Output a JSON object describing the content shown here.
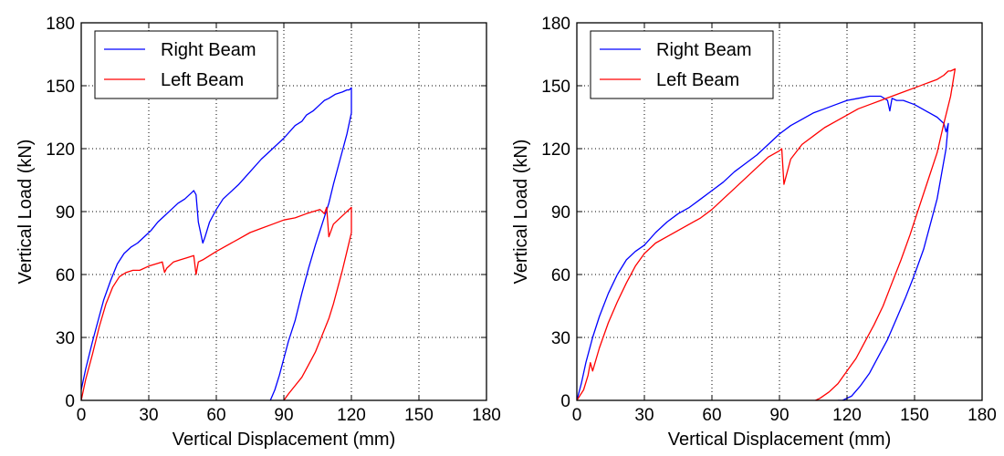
{
  "colors": {
    "right_beam": "#0000ff",
    "left_beam": "#ff0000",
    "grid": "#000000"
  },
  "chart_data": [
    {
      "type": "line",
      "xlabel": "Vertical Displacement (mm)",
      "ylabel": "Vertical Load (kN)",
      "xlim": [
        0,
        180
      ],
      "ylim": [
        0,
        180
      ],
      "xticks": [
        "0",
        "30",
        "60",
        "90",
        "120",
        "150",
        "180"
      ],
      "yticks": [
        "0",
        "30",
        "60",
        "90",
        "120",
        "150",
        "180"
      ],
      "grid": true,
      "legend_position": "top-left",
      "series": [
        {
          "name": "Right Beam",
          "color": "#0000ff",
          "x": [
            0,
            2,
            5,
            8,
            10,
            13,
            16,
            19,
            22,
            25,
            28,
            31,
            34,
            37,
            40,
            43,
            46,
            49,
            50,
            51,
            52,
            54,
            55,
            57,
            60,
            63,
            66,
            70,
            75,
            80,
            85,
            90,
            95,
            98,
            100,
            103,
            106,
            108,
            110,
            113,
            116,
            118,
            119,
            120,
            120,
            118,
            115,
            112,
            110,
            107,
            104,
            101,
            98,
            95,
            92,
            90,
            88,
            86,
            84
          ],
          "y": [
            5,
            15,
            28,
            40,
            48,
            57,
            65,
            70,
            73,
            75,
            78,
            81,
            85,
            88,
            91,
            94,
            96,
            99,
            100,
            98,
            85,
            75,
            78,
            85,
            91,
            96,
            99,
            103,
            109,
            115,
            120,
            125,
            131,
            133,
            136,
            138,
            141,
            143,
            144,
            146,
            147,
            148,
            148,
            149,
            137,
            127,
            115,
            103,
            94,
            84,
            74,
            63,
            51,
            38,
            28,
            20,
            12,
            5,
            0
          ]
        },
        {
          "name": "Left Beam",
          "color": "#ff0000",
          "x": [
            0,
            2,
            5,
            8,
            11,
            14,
            17,
            20,
            23,
            26,
            30,
            33,
            36,
            37,
            38,
            41,
            44,
            47,
            50,
            51,
            52,
            54,
            57,
            60,
            65,
            70,
            75,
            80,
            85,
            90,
            95,
            100,
            103,
            106,
            108,
            109,
            110,
            112,
            114,
            117,
            120,
            120,
            118,
            116,
            114,
            112,
            110,
            107,
            104,
            101,
            98,
            95,
            92,
            90
          ],
          "y": [
            0,
            10,
            22,
            35,
            46,
            54,
            59,
            61,
            62,
            62,
            64,
            65,
            66,
            61,
            63,
            66,
            67,
            68,
            69,
            60,
            66,
            67,
            69,
            71,
            74,
            77,
            80,
            82,
            84,
            86,
            87,
            89,
            90,
            91,
            89,
            92,
            78,
            84,
            86,
            89,
            92,
            80,
            71,
            62,
            54,
            46,
            39,
            31,
            23,
            17,
            11,
            7,
            3,
            0
          ]
        }
      ]
    },
    {
      "type": "line",
      "xlabel": "Vertical Displacement (mm)",
      "ylabel": "Vertical Load (kN)",
      "xlim": [
        0,
        180
      ],
      "ylim": [
        0,
        180
      ],
      "xticks": [
        "0",
        "30",
        "60",
        "90",
        "120",
        "150",
        "180"
      ],
      "yticks": [
        "0",
        "30",
        "60",
        "90",
        "120",
        "150",
        "180"
      ],
      "grid": true,
      "legend_position": "top-left",
      "series": [
        {
          "name": "Right Beam",
          "color": "#0000ff",
          "x": [
            0,
            2,
            4,
            7,
            10,
            14,
            18,
            22,
            26,
            30,
            35,
            40,
            45,
            50,
            55,
            60,
            65,
            70,
            75,
            80,
            85,
            90,
            95,
            100,
            105,
            110,
            115,
            120,
            125,
            130,
            135,
            138,
            139,
            140,
            142,
            145,
            150,
            155,
            160,
            163,
            164,
            165,
            164,
            162,
            160,
            157,
            154,
            150,
            146,
            142,
            138,
            134,
            130,
            126,
            122,
            118,
            116
          ],
          "y": [
            0,
            8,
            18,
            30,
            40,
            51,
            60,
            67,
            71,
            74,
            80,
            85,
            89,
            92,
            96,
            100,
            104,
            109,
            113,
            117,
            122,
            127,
            131,
            134,
            137,
            139,
            141,
            143,
            144,
            145,
            145,
            143,
            138,
            144,
            143,
            143,
            141,
            138,
            135,
            132,
            128,
            132,
            120,
            108,
            96,
            84,
            72,
            60,
            49,
            39,
            29,
            21,
            13,
            7,
            2,
            0,
            0
          ]
        },
        {
          "name": "Left Beam",
          "color": "#ff0000",
          "x": [
            0,
            3,
            5,
            6,
            7,
            10,
            14,
            18,
            22,
            26,
            30,
            35,
            40,
            45,
            50,
            55,
            60,
            65,
            70,
            75,
            80,
            85,
            90,
            91,
            92,
            95,
            100,
            105,
            110,
            115,
            120,
            125,
            130,
            135,
            140,
            145,
            150,
            155,
            160,
            163,
            165,
            166,
            168,
            168,
            166,
            163,
            160,
            156,
            152,
            148,
            144,
            140,
            136,
            132,
            128,
            124,
            120,
            116,
            112,
            108,
            106
          ],
          "y": [
            0,
            5,
            12,
            18,
            14,
            25,
            37,
            47,
            56,
            64,
            70,
            75,
            78,
            81,
            84,
            87,
            91,
            96,
            101,
            106,
            111,
            116,
            119,
            120,
            103,
            115,
            122,
            126,
            130,
            133,
            136,
            139,
            141,
            143,
            145,
            147,
            149,
            151,
            153,
            155,
            157,
            157,
            158,
            158,
            145,
            132,
            118,
            105,
            92,
            79,
            67,
            56,
            45,
            36,
            28,
            20,
            14,
            8,
            4,
            1,
            0
          ]
        }
      ]
    }
  ]
}
